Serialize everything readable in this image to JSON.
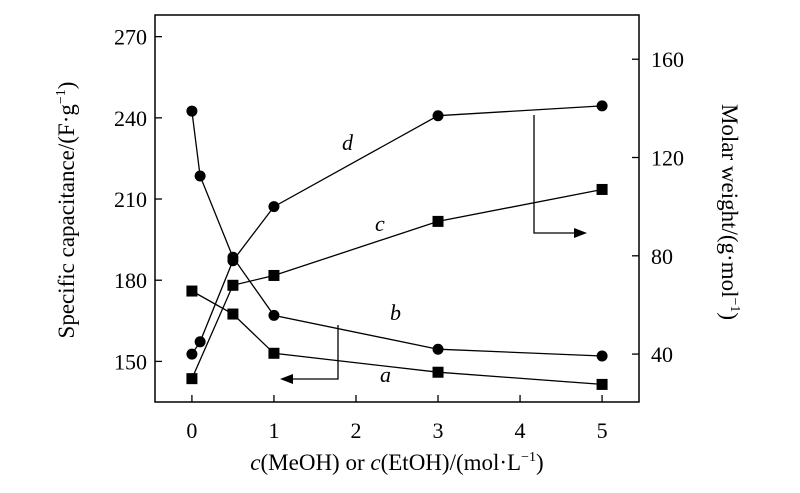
{
  "chart_data": {
    "type": "line",
    "xlabel": {
      "i1": "c",
      "t1": "(MeOH) or ",
      "i2": "c",
      "t2": "(EtOH)/(mol·L",
      "sup": "−1",
      "t3": ")"
    },
    "ylabel_left": {
      "text": "Specific capacitance/(F·g",
      "sup": "−1",
      "close": ")"
    },
    "ylabel_right": {
      "text": "Molar weight/(g·mol",
      "sup": "−1",
      "close": ")"
    },
    "x_ticks": [
      0,
      1,
      2,
      3,
      4,
      5
    ],
    "xlim": [
      -0.45,
      5.45
    ],
    "y_left_ticks": [
      150,
      180,
      210,
      240,
      270
    ],
    "y_left_lim": [
      135,
      278
    ],
    "y_right_ticks": [
      40,
      80,
      120,
      160
    ],
    "y_right_lim": [
      20.5,
      178
    ],
    "series": [
      {
        "name": "a",
        "axis": "left",
        "marker": "square",
        "x": [
          0,
          0.5,
          1,
          3,
          5
        ],
        "y": [
          176,
          167.5,
          153,
          146,
          141.5
        ]
      },
      {
        "name": "b",
        "axis": "left",
        "marker": "circle",
        "x": [
          0,
          0.1,
          0.5,
          1,
          3,
          5
        ],
        "y": [
          242.5,
          218.5,
          188.5,
          167,
          154.5,
          152
        ]
      },
      {
        "name": "c",
        "axis": "right",
        "marker": "square",
        "x": [
          0,
          0.5,
          1,
          3,
          5
        ],
        "y": [
          30,
          68,
          72,
          94,
          107
        ]
      },
      {
        "name": "d",
        "axis": "right",
        "marker": "circle",
        "x": [
          0,
          0.1,
          0.5,
          1,
          3,
          5
        ],
        "y": [
          40,
          45,
          78,
          100,
          137,
          141
        ]
      }
    ]
  }
}
